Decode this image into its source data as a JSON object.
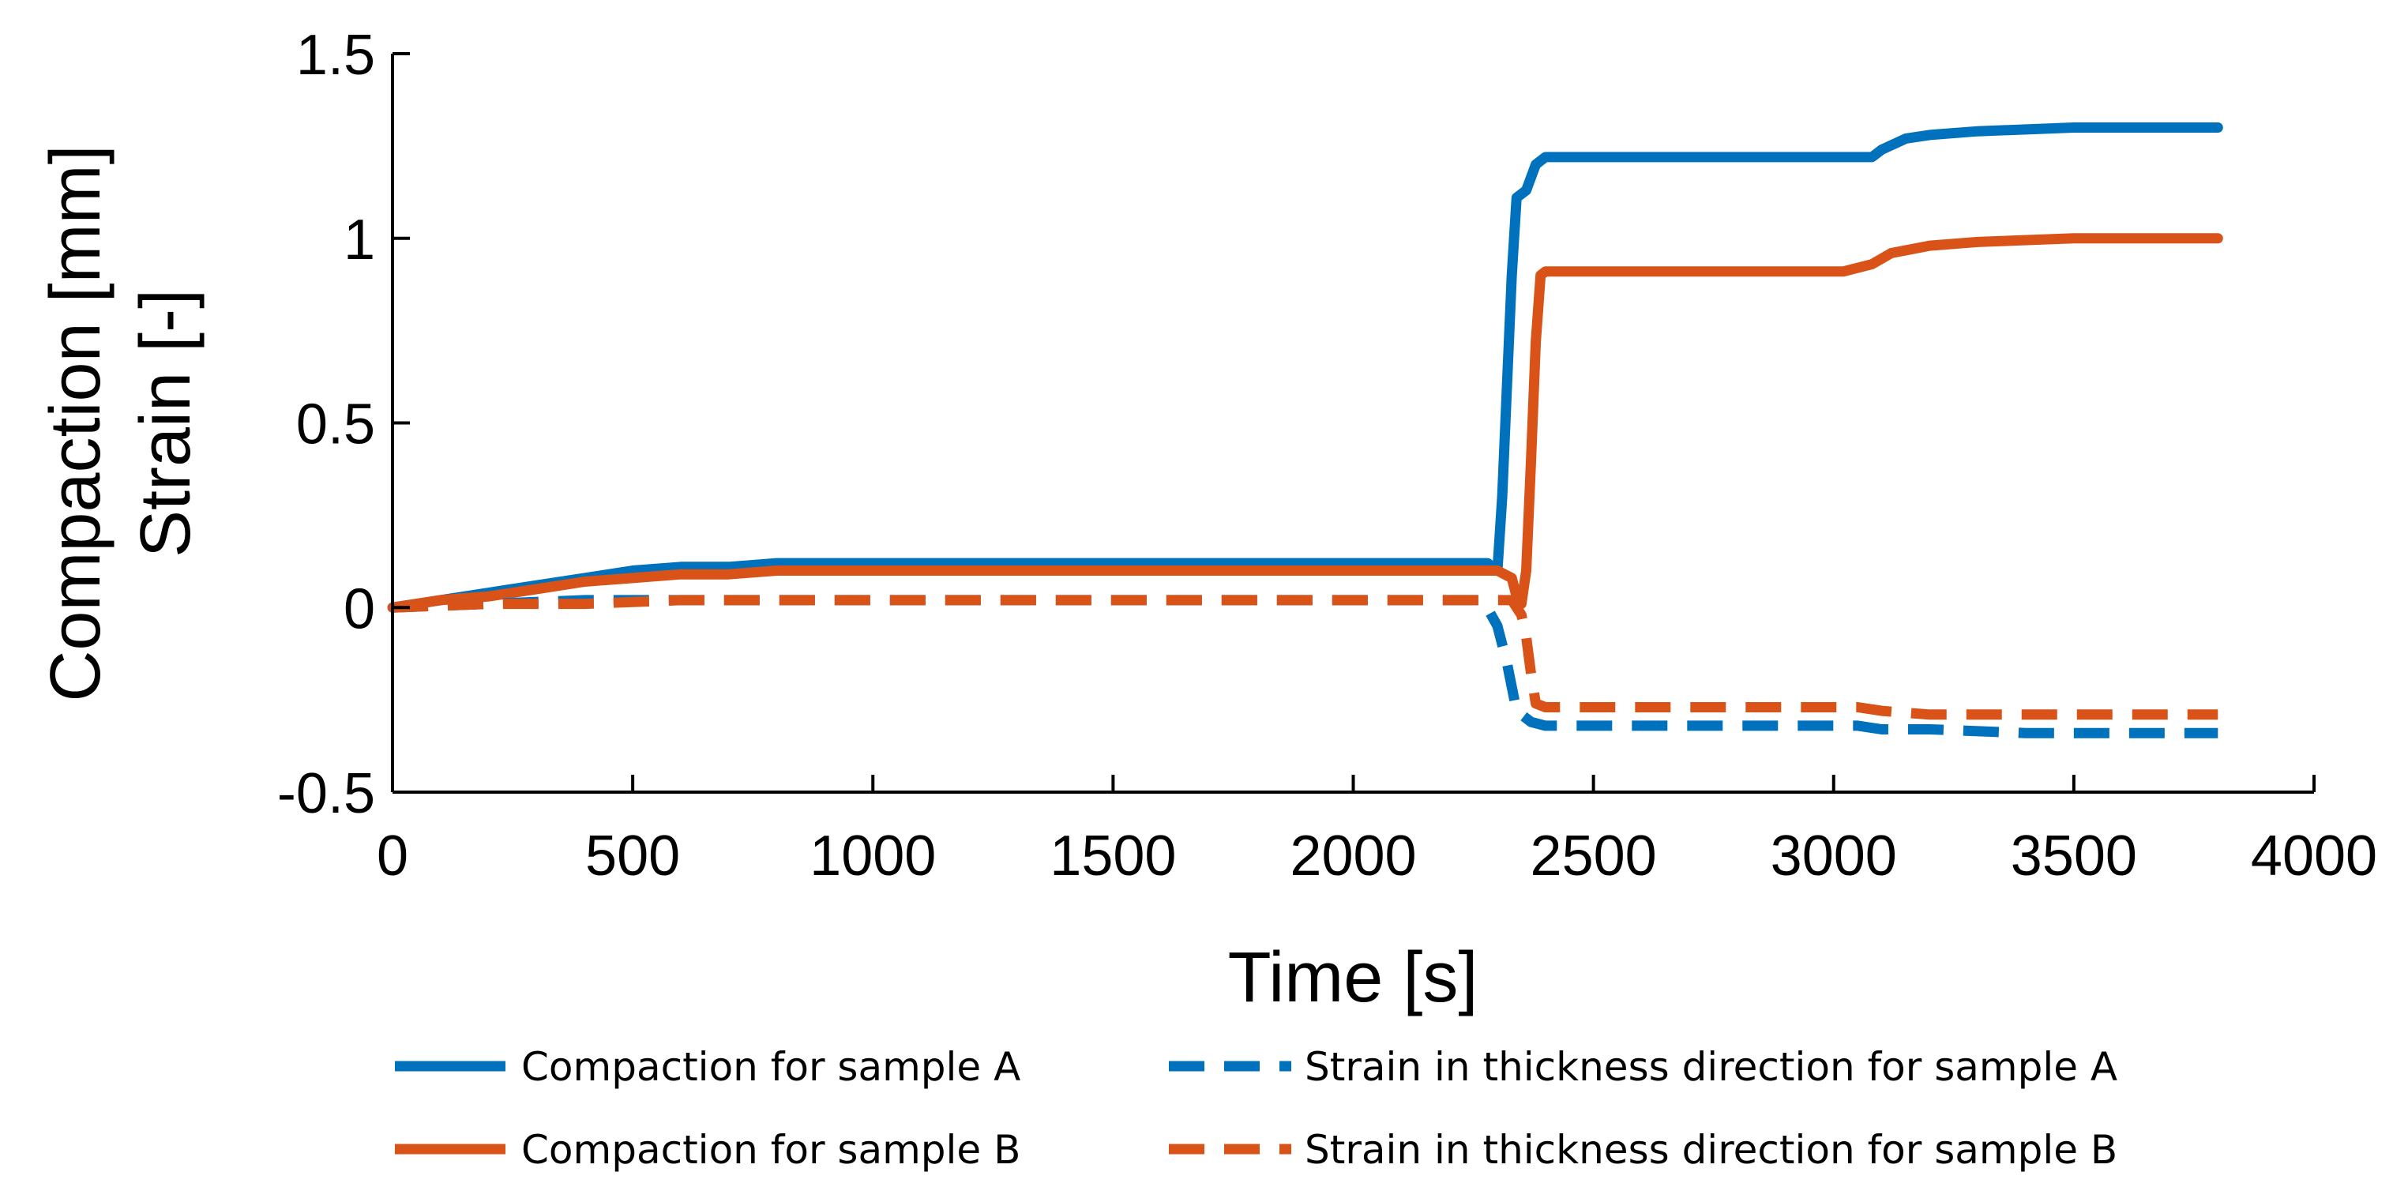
{
  "chart_data": {
    "type": "line",
    "title": "",
    "xlabel": "Time [s]",
    "ylabel_lines": [
      "Compaction [mm]",
      "Strain [-]"
    ],
    "xlim": [
      0,
      4000
    ],
    "ylim": [
      -0.5,
      1.5
    ],
    "xticks": [
      0,
      500,
      1000,
      1500,
      2000,
      2500,
      3000,
      3500,
      4000
    ],
    "xtick_labels": [
      "0",
      "500",
      "1000",
      "1500",
      "2000",
      "2500",
      "3000",
      "3500",
      "4000"
    ],
    "yticks": [
      -0.5,
      0,
      0.5,
      1,
      1.5
    ],
    "ytick_labels": [
      "-0.5",
      "0",
      "0.5",
      "1",
      "1.5"
    ],
    "grid": false,
    "legend_position": "bottom",
    "colors": {
      "sample_a": "#0072BD",
      "sample_b": "#D95319"
    },
    "series": [
      {
        "name": "Compaction for sample A",
        "color": "#0072BD",
        "style": "solid",
        "x": [
          0,
          100,
          200,
          300,
          400,
          500,
          600,
          700,
          800,
          900,
          1000,
          1500,
          2000,
          2250,
          2280,
          2300,
          2310,
          2320,
          2330,
          2340,
          2360,
          2380,
          2400,
          2500,
          3000,
          3080,
          3100,
          3150,
          3200,
          3300,
          3500,
          3800
        ],
        "y": [
          0,
          0.02,
          0.04,
          0.06,
          0.08,
          0.1,
          0.11,
          0.11,
          0.12,
          0.12,
          0.12,
          0.12,
          0.12,
          0.12,
          0.12,
          0.1,
          0.3,
          0.6,
          0.9,
          1.11,
          1.13,
          1.2,
          1.22,
          1.22,
          1.22,
          1.22,
          1.24,
          1.27,
          1.28,
          1.29,
          1.3,
          1.3
        ]
      },
      {
        "name": "Compaction for sample B",
        "color": "#D95319",
        "style": "solid",
        "x": [
          0,
          100,
          200,
          300,
          400,
          500,
          600,
          700,
          800,
          1000,
          1500,
          2000,
          2300,
          2330,
          2340,
          2350,
          2360,
          2370,
          2380,
          2390,
          2400,
          2500,
          2800,
          3000,
          3020,
          3080,
          3120,
          3200,
          3300,
          3500,
          3700,
          3800
        ],
        "y": [
          0,
          0.02,
          0.03,
          0.05,
          0.07,
          0.08,
          0.09,
          0.09,
          0.1,
          0.1,
          0.1,
          0.1,
          0.1,
          0.08,
          0.03,
          0.01,
          0.1,
          0.4,
          0.72,
          0.9,
          0.91,
          0.91,
          0.91,
          0.91,
          0.91,
          0.93,
          0.96,
          0.98,
          0.99,
          1.0,
          1.0,
          1.0
        ]
      },
      {
        "name": "Strain in thickness direction for sample A",
        "color": "#0072BD",
        "style": "dashed",
        "x": [
          0,
          200,
          400,
          600,
          1000,
          1500,
          2000,
          2270,
          2300,
          2320,
          2340,
          2370,
          2400,
          2500,
          3000,
          3050,
          3100,
          3200,
          3400,
          3600,
          3800
        ],
        "y": [
          0,
          0.01,
          0.02,
          0.02,
          0.02,
          0.02,
          0.02,
          0.02,
          -0.05,
          -0.15,
          -0.28,
          -0.31,
          -0.32,
          -0.32,
          -0.32,
          -0.32,
          -0.33,
          -0.33,
          -0.34,
          -0.34,
          -0.34
        ]
      },
      {
        "name": "Strain in thickness direction for sample B",
        "color": "#D95319",
        "style": "dashed",
        "x": [
          0,
          200,
          400,
          600,
          1000,
          1500,
          2000,
          2300,
          2330,
          2350,
          2360,
          2370,
          2380,
          2400,
          2500,
          2800,
          3000,
          3050,
          3100,
          3200,
          3400,
          3600,
          3800
        ],
        "y": [
          0,
          0.01,
          0.01,
          0.02,
          0.02,
          0.02,
          0.02,
          0.02,
          0.02,
          -0.02,
          -0.08,
          -0.18,
          -0.26,
          -0.27,
          -0.27,
          -0.27,
          -0.27,
          -0.27,
          -0.28,
          -0.29,
          -0.29,
          -0.29,
          -0.29
        ]
      }
    ]
  }
}
